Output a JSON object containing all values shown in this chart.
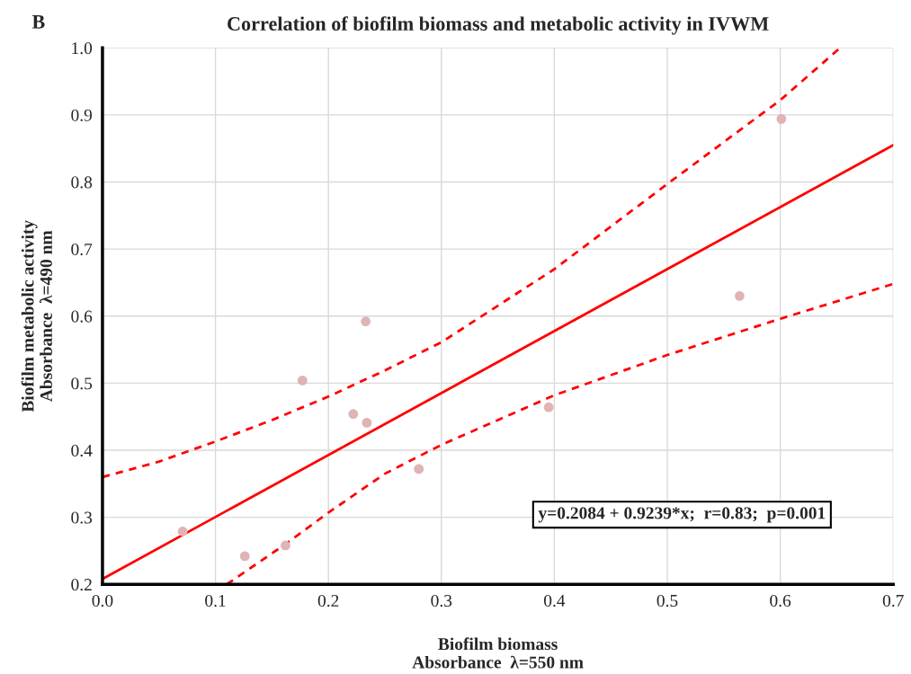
{
  "chart_data": {
    "type": "scatter",
    "title": "Correlation of biofilm biomass and metabolic activity in IVWM",
    "xlabel": "Biofilm biomass\nAbsorbance  λ=550 nm",
    "ylabel": "Biofilm metabolic activity\nAbsorbance  λ=490 nm",
    "annotations": [
      "B",
      "y=0.2084 + 0.9239*x;  r=0.83;  p=0.001"
    ],
    "series": [
      {
        "color": "#e0b4b4",
        "marker": "circle",
        "x": [
          0.071,
          0.126,
          0.162,
          0.177,
          0.222,
          0.234,
          0.233,
          0.28,
          0.395,
          0.564,
          0.601
        ],
        "values": [
          0.279,
          0.242,
          0.258,
          0.504,
          0.454,
          0.441,
          0.592,
          0.372,
          0.464,
          0.63,
          0.894
        ]
      },
      {
        "type": "line",
        "color": "#ff0000",
        "line_style": "solid",
        "x": [
          0.0,
          0.7
        ],
        "values": [
          0.208,
          0.855
        ]
      },
      {
        "type": "line",
        "color": "#ff0000",
        "line_style": "dashed",
        "x": [
          0.0,
          0.05,
          0.1,
          0.15,
          0.2,
          0.25,
          0.3,
          0.4,
          0.5,
          0.6,
          0.653
        ],
        "values": [
          0.36,
          0.383,
          0.413,
          0.445,
          0.48,
          0.519,
          0.561,
          0.67,
          0.797,
          0.922,
          1.0
        ]
      },
      {
        "type": "line",
        "color": "#ff0000",
        "line_style": "dashed",
        "x": [
          0.11,
          0.162,
          0.2,
          0.25,
          0.3,
          0.4,
          0.5,
          0.6,
          0.7
        ],
        "values": [
          0.2,
          0.26,
          0.307,
          0.365,
          0.408,
          0.482,
          0.542,
          0.596,
          0.648
        ]
      }
    ],
    "xlim": [
      0.0,
      0.7
    ],
    "ylim": [
      0.2,
      1.0
    ],
    "xticks": [
      {
        "value": 0.0,
        "label": "0.0"
      },
      0.1,
      0.2,
      0.3,
      0.4,
      0.5,
      0.6,
      0.7
    ],
    "yticks": [
      0.2,
      0.3,
      0.4,
      0.5,
      0.6,
      0.7,
      0.8,
      0.9,
      {
        "value": 1.0,
        "label": "1.0"
      }
    ],
    "grid": true,
    "legend": false
  }
}
